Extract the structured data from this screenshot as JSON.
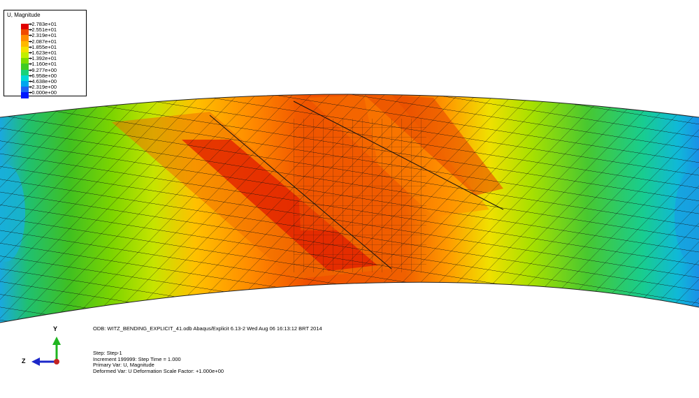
{
  "legend": {
    "title": "U, Magnitude",
    "entries": [
      {
        "label": "+2.783e+01",
        "color": "#e00000"
      },
      {
        "label": "+2.551e+01",
        "color": "#f04a00"
      },
      {
        "label": "+2.319e+01",
        "color": "#ff8c00"
      },
      {
        "label": "+2.087e+01",
        "color": "#ffb800"
      },
      {
        "label": "+1.855e+01",
        "color": "#f4e000"
      },
      {
        "label": "+1.623e+01",
        "color": "#c2ee00"
      },
      {
        "label": "+1.392e+01",
        "color": "#7edc00"
      },
      {
        "label": "+1.160e+01",
        "color": "#3fcc22"
      },
      {
        "label": "+9.277e+00",
        "color": "#18d27a"
      },
      {
        "label": "+6.958e+00",
        "color": "#00d8d8"
      },
      {
        "label": "+4.638e+00",
        "color": "#00a6ee"
      },
      {
        "label": "+2.319e+00",
        "color": "#1e62f4"
      },
      {
        "label": "+0.000e+00",
        "color": "#0018ff"
      }
    ]
  },
  "odb_info": "ODB: WITZ_BENDING_EXPLICIT_41.odb    Abaqus/Explicit 6.13-2    Wed Aug 06 16:13:12 BRT 2014",
  "step_info": {
    "step": "Step: Step-1",
    "increment": "Increment    199999: Step Time =     1.000",
    "primary_var": "Primary Var: U, Magnitude",
    "deformed_var": "Deformed Var: U   Deformation Scale Factor: +1.000e+00"
  },
  "triad": {
    "y_label": "Y",
    "z_label": "Z",
    "y_color": "#1fb520",
    "z_color": "#1c28c8",
    "x_color": "#c22222"
  }
}
